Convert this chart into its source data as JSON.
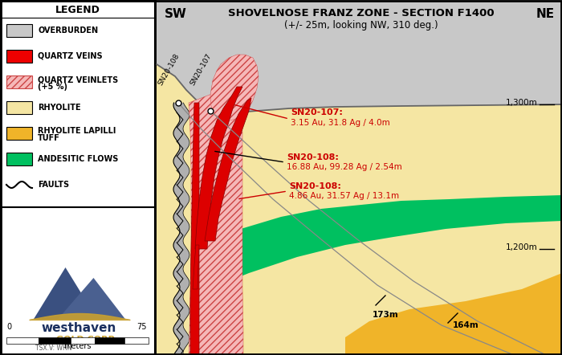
{
  "title": "SHOVELNOSE FRANZ ZONE - SECTION F1400",
  "subtitle": "(+/- 25m, looking NW, 310 deg.)",
  "sw_label": "SW",
  "ne_label": "NE",
  "elevation_1300": "1,300m",
  "elevation_1200": "1,200m",
  "depth_173": "173m",
  "depth_164": "164m",
  "annotation1_title": "SN20-107:",
  "annotation1_body": "3.15 Au, 31.8 Ag / 4.0m",
  "annotation2_title": "SN20-108:",
  "annotation2_body": "16.88 Au, 99.28 Ag / 2.54m",
  "annotation3_title": "SN20-108:",
  "annotation3_body": "4.86 Au, 31.57 Ag / 13.1m",
  "drill1_label": "SN20-108",
  "drill2_label": "SN20-107",
  "colors": {
    "background": "#ffffff",
    "rhyolite": "#f5e6a3",
    "rhyolite_lapilli": "#f0b429",
    "andesite": "#00c060",
    "overburden": "#c8c8c8",
    "quartz_vein": "#dd0000",
    "quartz_veinlet_face": "#f5b8b8",
    "fault_gray": "#b0b0b0",
    "annotation_red": "#cc0000",
    "drill_line": "#888888"
  }
}
